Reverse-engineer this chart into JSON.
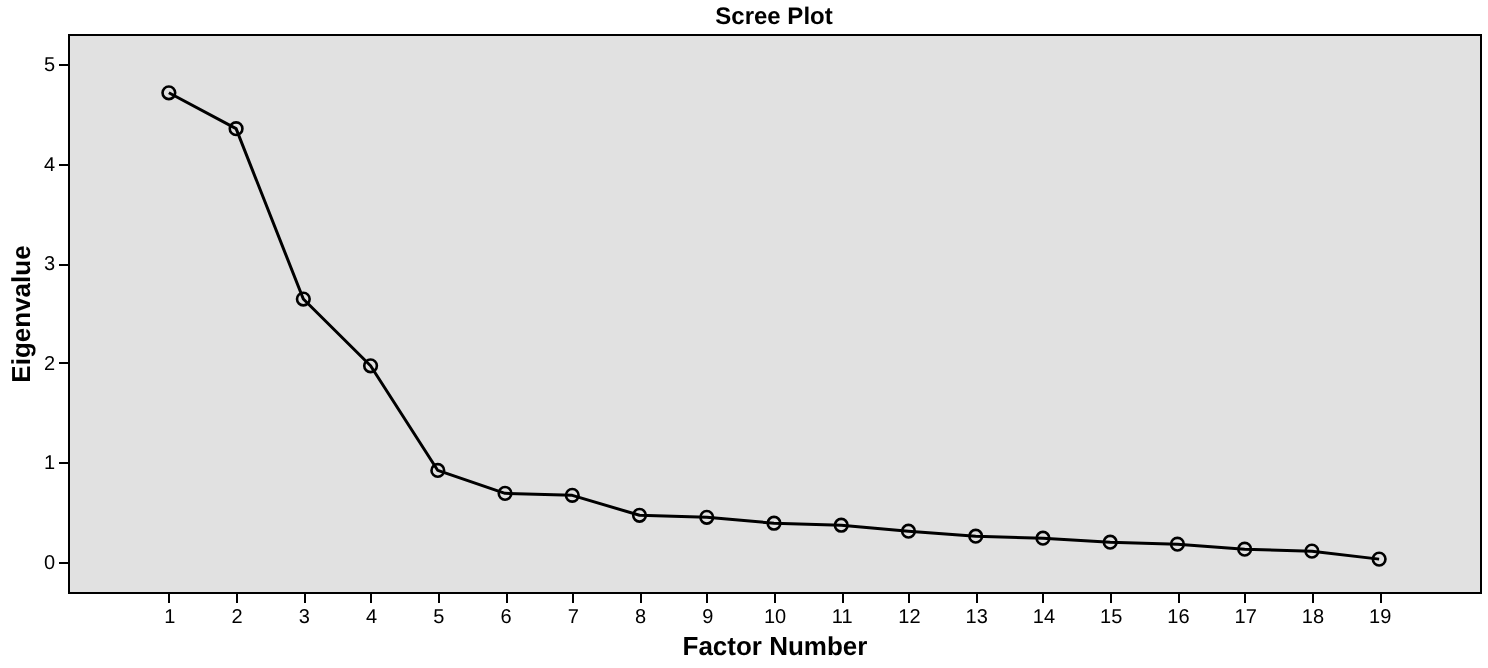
{
  "chart_data": {
    "type": "line",
    "title": "Scree Plot",
    "xlabel": "Factor Number",
    "ylabel": "Eigenvalue",
    "x": [
      1,
      2,
      3,
      4,
      5,
      6,
      7,
      8,
      9,
      10,
      11,
      12,
      13,
      14,
      15,
      16,
      17,
      18,
      19
    ],
    "series": [
      {
        "color": "#000000",
        "values": [
          4.71,
          4.35,
          2.64,
          1.97,
          0.92,
          0.69,
          0.67,
          0.47,
          0.45,
          0.39,
          0.37,
          0.31,
          0.26,
          0.24,
          0.2,
          0.18,
          0.13,
          0.11,
          0.03
        ]
      }
    ],
    "xlim": [
      -0.5,
      20.5
    ],
    "xticks": [
      1,
      2,
      3,
      4,
      5,
      6,
      7,
      8,
      9,
      10,
      11,
      12,
      13,
      14,
      15,
      16,
      17,
      18,
      19
    ],
    "ylim": [
      -0.3,
      5.3
    ],
    "yticks": [
      0,
      1,
      2,
      3,
      4,
      5
    ],
    "grid": false,
    "marker": "circle",
    "line_style": "solid"
  }
}
